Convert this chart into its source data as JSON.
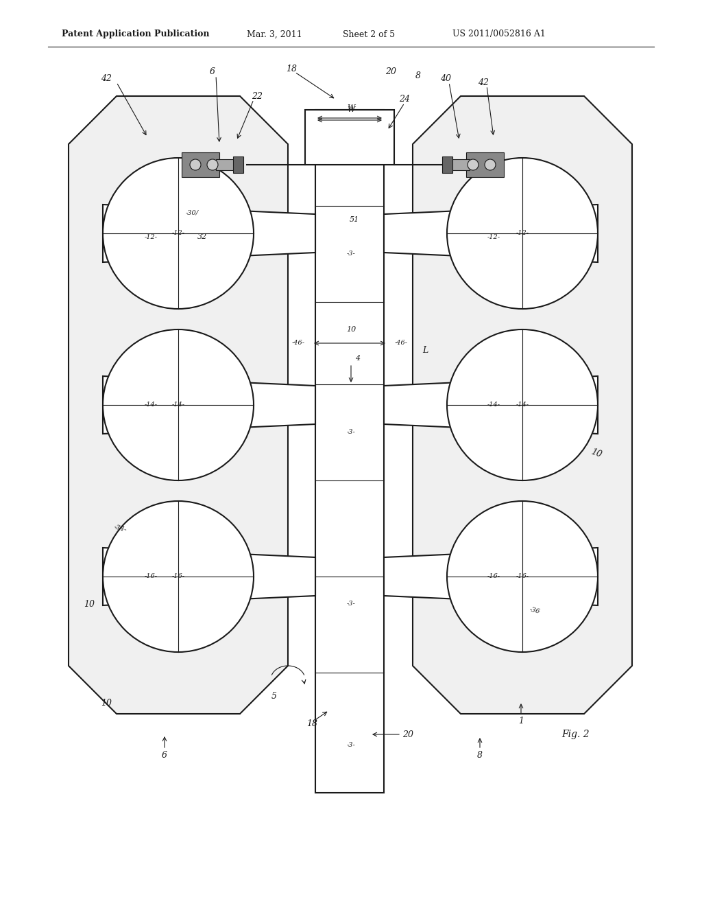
{
  "bg_color": "#ffffff",
  "header_text": "Patent Application Publication",
  "header_date": "Mar. 3, 2011",
  "header_sheet": "Sheet 2 of 5",
  "header_patent": "US 2011/0052816 A1",
  "fig_label": "Fig. 2",
  "line_color": "#1a1a1a",
  "line_width": 1.5,
  "thin_line": 0.8
}
